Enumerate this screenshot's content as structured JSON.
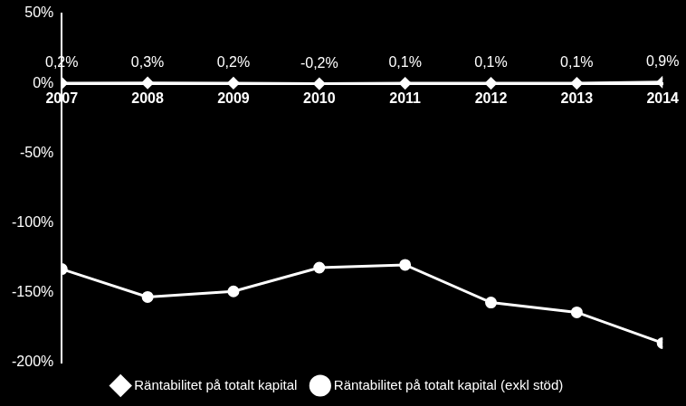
{
  "chart_data": {
    "type": "line",
    "categories": [
      "2007",
      "2008",
      "2009",
      "2010",
      "2011",
      "2012",
      "2013",
      "2014"
    ],
    "series": [
      {
        "name": "Räntabilitet på totalt kapital",
        "color": "#ffffff",
        "marker": "diamond",
        "data_labels": true,
        "values": [
          0.2,
          0.3,
          0.2,
          -0.2,
          0.1,
          0.1,
          0.1,
          0.9
        ],
        "value_labels": [
          "0,2%",
          "0,3%",
          "0,2%",
          "-0,2%",
          "0,1%",
          "0,1%",
          "0,1%",
          "0,9%"
        ]
      },
      {
        "name": "Räntabilitet på totalt kapital (exkl stöd)",
        "color": "#ffffff",
        "marker": "circle",
        "values": [
          -133,
          -153,
          -149,
          -132,
          -130,
          -157,
          -164,
          -186
        ]
      }
    ],
    "ylim": [
      -200,
      50
    ],
    "yticks": [
      {
        "value": -200,
        "label": "-200%"
      },
      {
        "value": -150,
        "label": "-150%"
      },
      {
        "value": -100,
        "label": "-100%"
      },
      {
        "value": -50,
        "label": "-50%"
      },
      {
        "value": 0,
        "label": "0%"
      },
      {
        "value": 50,
        "label": "50%"
      }
    ],
    "grid": false,
    "legend": "bottom"
  }
}
